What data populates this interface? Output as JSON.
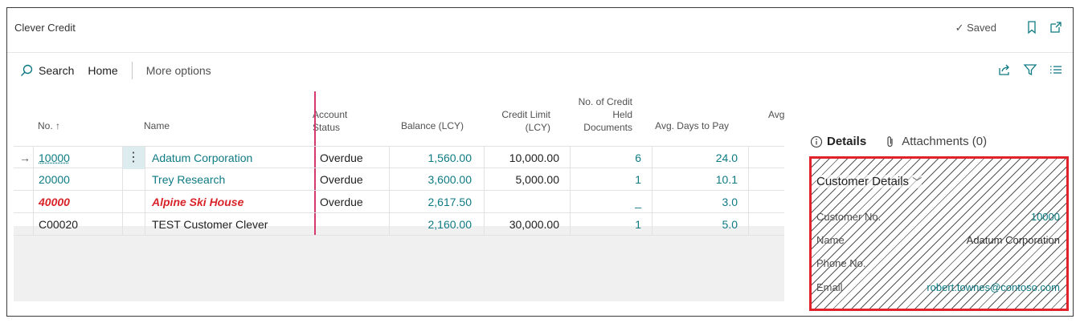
{
  "window": {
    "title": "Clever Credit",
    "saved_status": "Saved",
    "bookmark_icon": "bookmark-icon",
    "popout_icon": "open-new-window-icon"
  },
  "actions": {
    "search_label": "Search",
    "home_label": "Home",
    "more_label": "More options"
  },
  "columns": {
    "no": "No. ↑",
    "name": "Name",
    "status_line1": "Account",
    "status_line2": "Status",
    "balance": "Balance (LCY)",
    "limit_line1": "Credit Limit",
    "limit_line2": "(LCY)",
    "held_line1": "No. of Credit",
    "held_line2": "Held",
    "held_line3": "Documents",
    "avgdays": "Avg. Days to Pay",
    "avg": "Avg"
  },
  "rows": [
    {
      "no": "10000",
      "name": "Adatum Corporation",
      "status": "Overdue",
      "balance": "1,560.00",
      "limit": "10,000.00",
      "held": "6",
      "avgdays": "24.0"
    },
    {
      "no": "20000",
      "name": "Trey Research",
      "status": "Overdue",
      "balance": "3,600.00",
      "limit": "5,000.00",
      "held": "1",
      "avgdays": "10.1"
    },
    {
      "no": "40000",
      "name": "Alpine Ski House",
      "status": "Overdue",
      "balance": "2,617.50",
      "limit": "",
      "held": "_",
      "avgdays": "3.0"
    },
    {
      "no": "C00020",
      "name": "TEST Customer Clever",
      "status": "",
      "balance": "2,160.00",
      "limit": "30,000.00",
      "held": "1",
      "avgdays": "5.0"
    }
  ],
  "factbox": {
    "tab_details": "Details",
    "tab_attachments": "Attachments (0)",
    "section_title": "Customer Details",
    "fields": {
      "customer_no_label": "Customer No.",
      "customer_no_value": "10000",
      "name_label": "Name",
      "name_value": "Adatum Corporation",
      "phone_label": "Phone No.",
      "phone_value": "",
      "email_label": "Email",
      "email_value": "robert.townes@contoso.com"
    }
  },
  "colors": {
    "accent": "#0e7a83",
    "highlight_red": "#e0232a",
    "status_bar": "#d63a6c"
  }
}
